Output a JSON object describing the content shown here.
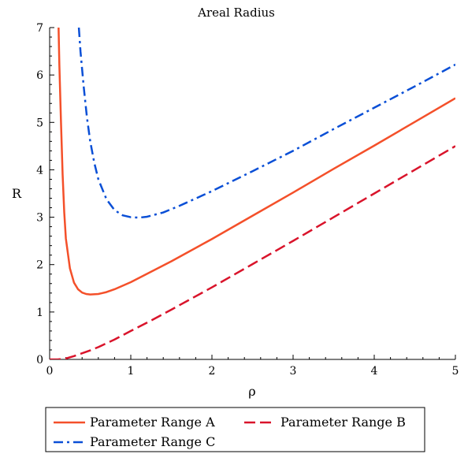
{
  "chart_data": {
    "type": "line",
    "title": "Areal Radius",
    "xlabel": "ρ",
    "ylabel": "R",
    "xlim": [
      0,
      5
    ],
    "ylim": [
      0,
      7
    ],
    "xticks": [
      0,
      1,
      2,
      3,
      4,
      5
    ],
    "yticks": [
      0,
      1,
      2,
      3,
      4,
      5,
      6,
      7
    ],
    "grid": false,
    "legend_position": "bottom",
    "series": [
      {
        "name": "Parameter Range A",
        "color": "#f4502a",
        "dash": "solid",
        "x": [
          0.11,
          0.12,
          0.14,
          0.16,
          0.18,
          0.2,
          0.25,
          0.3,
          0.35,
          0.4,
          0.45,
          0.5,
          0.6,
          0.7,
          0.8,
          1.0,
          1.25,
          1.5,
          2.0,
          2.5,
          3.0,
          3.5,
          4.0,
          4.5,
          5.0
        ],
        "y": [
          7.0,
          6.2,
          5.0,
          3.9,
          3.1,
          2.55,
          1.92,
          1.62,
          1.48,
          1.41,
          1.38,
          1.37,
          1.38,
          1.42,
          1.48,
          1.63,
          1.85,
          2.07,
          2.54,
          3.03,
          3.52,
          4.02,
          4.51,
          5.01,
          5.51
        ]
      },
      {
        "name": "Parameter Range B",
        "color": "#d9142b",
        "dash": "dashed",
        "x": [
          0.0,
          0.1,
          0.2,
          0.3,
          0.4,
          0.5,
          0.6,
          0.8,
          1.0,
          1.25,
          1.5,
          2.0,
          2.5,
          3.0,
          3.5,
          4.0,
          4.5,
          5.0
        ],
        "y": [
          0.0,
          0.0,
          0.02,
          0.07,
          0.13,
          0.19,
          0.26,
          0.42,
          0.6,
          0.82,
          1.05,
          1.52,
          2.01,
          2.5,
          3.0,
          3.5,
          4.0,
          4.5
        ]
      },
      {
        "name": "Parameter Range C",
        "color": "#0a4fd6",
        "dash": "dashdot",
        "x": [
          0.36,
          0.38,
          0.42,
          0.46,
          0.5,
          0.55,
          0.6,
          0.7,
          0.8,
          0.9,
          1.0,
          1.1,
          1.2,
          1.4,
          1.6,
          2.0,
          2.5,
          3.0,
          3.5,
          4.0,
          4.5,
          5.0
        ],
        "y": [
          7.0,
          6.5,
          5.75,
          5.1,
          4.6,
          4.15,
          3.8,
          3.38,
          3.15,
          3.04,
          3.0,
          2.99,
          3.01,
          3.1,
          3.24,
          3.55,
          3.97,
          4.4,
          4.86,
          5.31,
          5.76,
          6.22
        ]
      }
    ]
  }
}
